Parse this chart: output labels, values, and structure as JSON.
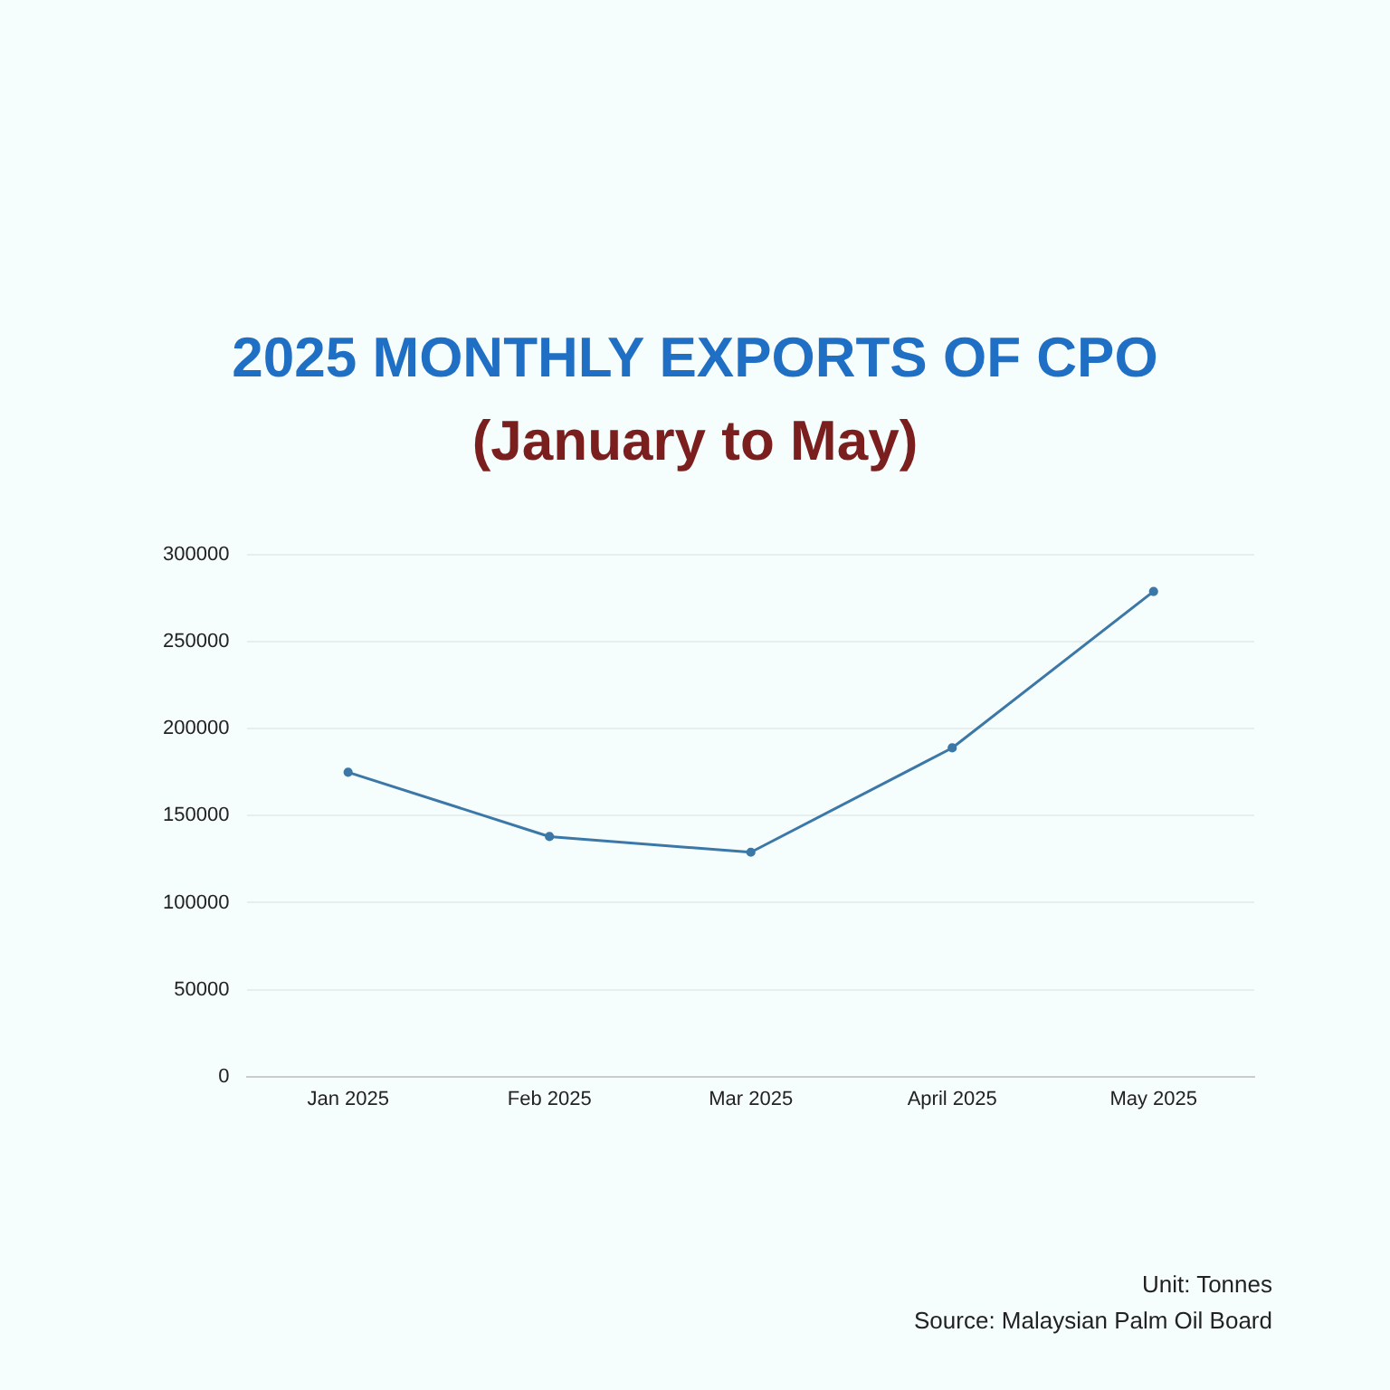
{
  "chart_data": {
    "type": "line",
    "title": "2025 MONTHLY EXPORTS OF CPO",
    "subtitle": "(January to May)",
    "categories": [
      "Jan 2025",
      "Feb 2025",
      "Mar 2025",
      "April 2025",
      "May 2025"
    ],
    "series": [
      {
        "color": "#3b78a8",
        "values": [
          175000,
          138000,
          129000,
          189000,
          279000
        ]
      }
    ],
    "ylim": [
      0,
      300000
    ],
    "yticks": [
      0,
      50000,
      100000,
      150000,
      200000,
      250000,
      300000
    ],
    "grid": "y",
    "legend": false,
    "marker": "circle",
    "line_style": "solid",
    "annotations": [
      "Unit: Tonnes",
      "Source: Malaysian Palm Oil Board"
    ]
  }
}
